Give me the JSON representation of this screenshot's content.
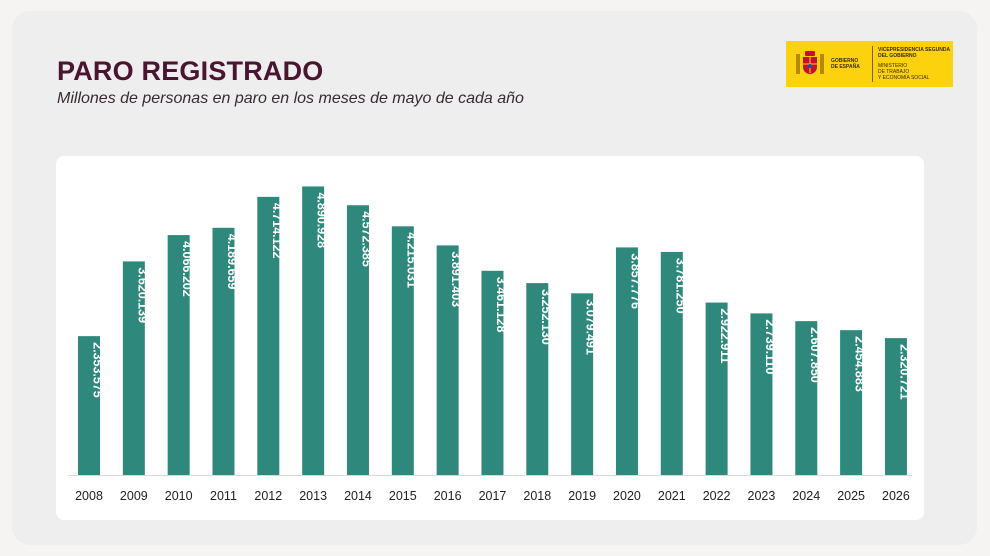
{
  "page": {
    "title": "PARO REGISTRADO",
    "subtitle": "Millones de personas en paro en los meses de mayo de cada año"
  },
  "logo": {
    "gov_text": "GOBIERNO\nDE ESPAÑA",
    "vp_text": "VICEPRESIDENCIA SEGUNDA DEL GOBIERNO",
    "ministry_text": "MINISTERIO\nDE TRABAJO\nY ECONOMÍA SOCIAL",
    "color": "#fcd20e",
    "icon": "coat-of-arms-icon"
  },
  "chart_data": {
    "type": "bar",
    "categories": [
      "2008",
      "2009",
      "2010",
      "2011",
      "2012",
      "2013",
      "2014",
      "2015",
      "2016",
      "2017",
      "2018",
      "2019",
      "2020",
      "2021",
      "2022",
      "2023",
      "2024",
      "2025",
      "2026"
    ],
    "values": [
      2353575,
      3620139,
      4066202,
      4189659,
      4714122,
      4890928,
      4572385,
      4215031,
      3891403,
      3461128,
      3252130,
      3079491,
      3857776,
      3781250,
      2922911,
      2739110,
      2607850,
      2454883,
      2320721
    ],
    "labels": [
      "2.353.575",
      "3.620.139",
      "4.066.202",
      "4.189.659",
      "4.714.122",
      "4.890.928",
      "4.572.385",
      "4.215.031",
      "3.891.403",
      "3.461.128",
      "3.252.130",
      "3.079.491",
      "3.857.776",
      "3.781.250",
      "2.922.911",
      "2.739.110",
      "2.607.850",
      "2.454.883",
      "2.320.721"
    ],
    "ylim": [
      0,
      5000000
    ],
    "bar_color": "#2e897c",
    "grid": false,
    "legend": "none"
  }
}
